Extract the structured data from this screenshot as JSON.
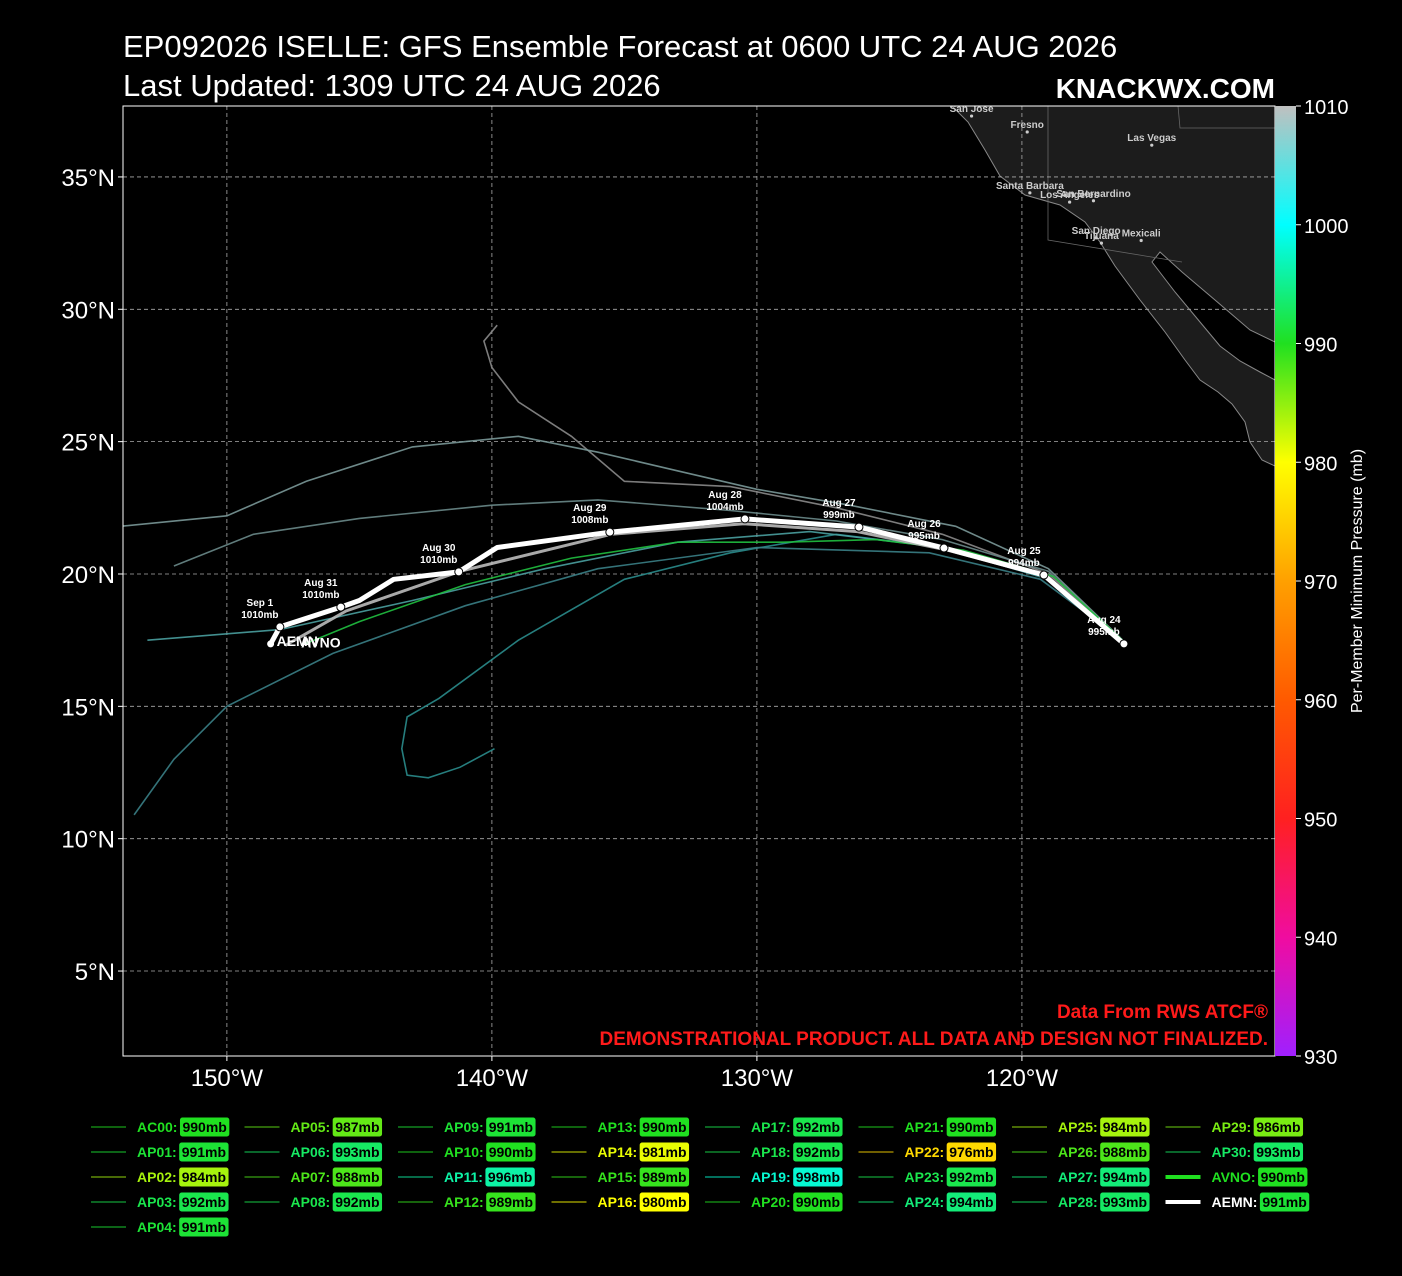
{
  "header": {
    "title": "EP092026 ISELLE: GFS Ensemble Forecast at 0600 UTC 24 AUG 2026",
    "subtitle": "Last Updated: 1309 UTC 24 AUG 2026",
    "watermark": "KNACKWX.COM"
  },
  "chart_data": {
    "type": "track-map",
    "xlim": [
      -153.92,
      -110.45
    ],
    "ylim": [
      1.79,
      37.68
    ],
    "xticks": [
      {
        "value": -150,
        "label": "150°W"
      },
      {
        "value": -140,
        "label": "140°W"
      },
      {
        "value": -130,
        "label": "130°W"
      },
      {
        "value": -120,
        "label": "120°W"
      }
    ],
    "yticks": [
      {
        "value": 5,
        "label": "5°N"
      },
      {
        "value": 10,
        "label": "10°N"
      },
      {
        "value": 15,
        "label": "15°N"
      },
      {
        "value": 20,
        "label": "20°N"
      },
      {
        "value": 25,
        "label": "25°N"
      },
      {
        "value": 30,
        "label": "30°N"
      },
      {
        "value": 35,
        "label": "35°N"
      }
    ],
    "grid": true,
    "land_color": "#1c1c1c",
    "cities": [
      {
        "name": "San Jose",
        "lon": -121.9,
        "lat": 37.3
      },
      {
        "name": "Fresno",
        "lon": -119.8,
        "lat": 36.7
      },
      {
        "name": "Las Vegas",
        "lon": -115.1,
        "lat": 36.2
      },
      {
        "name": "Santa Barbara",
        "lon": -119.7,
        "lat": 34.4
      },
      {
        "name": "Los Angeles",
        "lon": -118.2,
        "lat": 34.05
      },
      {
        "name": "San Bernardino",
        "lon": -117.3,
        "lat": 34.1
      },
      {
        "name": "San Diego",
        "lon": -117.2,
        "lat": 32.7
      },
      {
        "name": "Tijuana",
        "lon": -117.0,
        "lat": 32.5
      },
      {
        "name": "Mexicali",
        "lon": -115.5,
        "lat": 32.6
      }
    ],
    "members": [
      {
        "color": "#2a8c8c",
        "lon": [
          -116.2,
          -119,
          -123,
          -127,
          -131,
          -135,
          -139,
          -142,
          -143.2,
          -143.4,
          -143.2,
          -142.4,
          -141.2,
          -139.9
        ],
        "lat": [
          17.5,
          19.8,
          21,
          21.5,
          20.8,
          19.8,
          17.5,
          15.3,
          14.6,
          13.4,
          12.4,
          12.3,
          12.7,
          13.4
        ]
      },
      {
        "color": "#8a8a8a",
        "lon": [
          -116.2,
          -119,
          -123,
          -127,
          -131,
          -135,
          -137,
          -139,
          -140,
          -140.3,
          -139.8
        ],
        "lat": [
          17.5,
          20,
          21.5,
          22.5,
          23.3,
          23.5,
          25.2,
          26.5,
          27.8,
          28.8,
          29.4
        ]
      },
      {
        "color": "#6a8a8a",
        "lon": [
          -116.2,
          -119,
          -123,
          -127,
          -131,
          -136,
          -140,
          -145,
          -149,
          -152
        ],
        "lat": [
          17.5,
          20.1,
          21.3,
          22,
          22.4,
          22.8,
          22.6,
          22.1,
          21.5,
          20.3
        ]
      },
      {
        "color": "#4aa0a0",
        "lon": [
          -116.2,
          -119.2,
          -123,
          -128,
          -133,
          -138,
          -143,
          -148,
          -153
        ],
        "lat": [
          17.5,
          19.9,
          21,
          21.6,
          21.2,
          20.2,
          19,
          17.9,
          17.5
        ]
      },
      {
        "color": "#3a7f86",
        "lon": [
          -116.2,
          -119.3,
          -123.5,
          -130,
          -136,
          -141,
          -146,
          -150,
          -152,
          -153.5
        ],
        "lat": [
          17.5,
          19.8,
          20.8,
          21,
          20.2,
          18.8,
          17,
          15,
          13,
          10.9
        ]
      },
      {
        "color": "#7a9898",
        "lon": [
          -116.3,
          -119,
          -122.5,
          -126.5,
          -130,
          -133,
          -136,
          -139,
          -143,
          -147,
          -150,
          -154
        ],
        "lat": [
          17.6,
          20.2,
          21.8,
          22.6,
          23.2,
          23.9,
          24.6,
          25.2,
          24.8,
          23.5,
          22.2,
          21.8
        ]
      },
      {
        "color": "#20c040",
        "lon": [
          -116.1,
          -118.8,
          -122.2,
          -125.5,
          -129,
          -133,
          -137,
          -141,
          -145,
          -147.2
        ],
        "lat": [
          17.4,
          19.9,
          20.9,
          21.3,
          21.2,
          21.2,
          20.6,
          19.6,
          18.2,
          17.3
        ]
      },
      {
        "name": "AVNO",
        "color": "#bbbbbb",
        "lon": [
          -116.2,
          -119.1,
          -122.8,
          -126.2,
          -130.5,
          -135.5,
          -141.2,
          -145.5,
          -147.8
        ],
        "lat": [
          17.4,
          19.9,
          20.9,
          21.6,
          21.9,
          21.5,
          20.1,
          18.6,
          17.3
        ]
      }
    ],
    "mean_track": {
      "name": "AEMN",
      "color": "#ffffff",
      "lon": [
        -116.15,
        -119.17,
        -122.94,
        -126.15,
        -130.45,
        -135.55,
        -139.8,
        -141.25,
        -143.7,
        -145.0,
        -145.7,
        -148.0,
        -148.35
      ],
      "lat": [
        17.36,
        19.96,
        20.98,
        21.77,
        22.08,
        21.58,
        21.0,
        20.08,
        19.8,
        19.0,
        18.75,
        18.0,
        17.36
      ],
      "points": [
        {
          "date": "Aug 24",
          "pressure": {
            "value": 995,
            "label": "995mb"
          },
          "lon": -116.15,
          "lat": 17.36
        },
        {
          "date": "Aug 25",
          "pressure": {
            "value": 994,
            "label": "994mb"
          },
          "lon": -119.17,
          "lat": 19.96
        },
        {
          "date": "Aug 26",
          "pressure": {
            "value": 995,
            "label": "995mb"
          },
          "lon": -122.94,
          "lat": 20.98
        },
        {
          "date": "Aug 27",
          "pressure": {
            "value": 999,
            "label": "999mb"
          },
          "lon": -126.15,
          "lat": 21.77
        },
        {
          "date": "Aug 28",
          "pressure": {
            "value": 1004,
            "label": "1004mb"
          },
          "lon": -130.45,
          "lat": 22.08
        },
        {
          "date": "Aug 29",
          "pressure": {
            "value": 1008,
            "label": "1008mb"
          },
          "lon": -135.55,
          "lat": 21.58
        },
        {
          "date": "Aug 30",
          "pressure": {
            "value": 1010,
            "label": "1010mb"
          },
          "lon": -141.25,
          "lat": 20.08
        },
        {
          "date": "Aug 31",
          "pressure": {
            "value": 1010,
            "label": "1010mb"
          },
          "lon": -145.7,
          "lat": 18.75
        },
        {
          "date": "Sep 1",
          "pressure": {
            "value": 1010,
            "label": "1010mb"
          },
          "lon": -148.0,
          "lat": 18.0
        }
      ]
    },
    "colorbar": {
      "label": "Per-Member Minimum Pressure (mb)",
      "lim": [
        930,
        1010
      ],
      "ticks": [
        930,
        940,
        950,
        960,
        970,
        980,
        990,
        1000,
        1010
      ],
      "stops": [
        {
          "value": 930,
          "color": "#a020ff"
        },
        {
          "value": 940,
          "color": "#f00ca0"
        },
        {
          "value": 950,
          "color": "#ff2020"
        },
        {
          "value": 960,
          "color": "#ff5a00"
        },
        {
          "value": 970,
          "color": "#ffa000"
        },
        {
          "value": 980,
          "color": "#ffff00"
        },
        {
          "value": 990,
          "color": "#20e020"
        },
        {
          "value": 1000,
          "color": "#00ffff"
        },
        {
          "value": 1010,
          "color": "#c0c0c0"
        }
      ]
    },
    "legend": [
      {
        "name": "AC00:",
        "pressure": {
          "value": 990,
          "label": "990mb"
        }
      },
      {
        "name": "AP01:",
        "pressure": {
          "value": 991,
          "label": "991mb"
        }
      },
      {
        "name": "AP02:",
        "pressure": {
          "value": 984,
          "label": "984mb"
        }
      },
      {
        "name": "AP03:",
        "pressure": {
          "value": 992,
          "label": "992mb"
        }
      },
      {
        "name": "AP04:",
        "pressure": {
          "value": 991,
          "label": "991mb"
        }
      },
      {
        "name": "AP05:",
        "pressure": {
          "value": 987,
          "label": "987mb"
        }
      },
      {
        "name": "AP06:",
        "pressure": {
          "value": 993,
          "label": "993mb"
        }
      },
      {
        "name": "AP07:",
        "pressure": {
          "value": 988,
          "label": "988mb"
        }
      },
      {
        "name": "AP08:",
        "pressure": {
          "value": 992,
          "label": "992mb"
        }
      },
      {
        "name": "AP09:",
        "pressure": {
          "value": 991,
          "label": "991mb"
        }
      },
      {
        "name": "AP10:",
        "pressure": {
          "value": 990,
          "label": "990mb"
        }
      },
      {
        "name": "AP11:",
        "pressure": {
          "value": 996,
          "label": "996mb"
        }
      },
      {
        "name": "AP12:",
        "pressure": {
          "value": 989,
          "label": "989mb"
        }
      },
      {
        "name": "AP13:",
        "pressure": {
          "value": 990,
          "label": "990mb"
        }
      },
      {
        "name": "AP14:",
        "pressure": {
          "value": 981,
          "label": "981mb"
        }
      },
      {
        "name": "AP15:",
        "pressure": {
          "value": 989,
          "label": "989mb"
        }
      },
      {
        "name": "AP16:",
        "pressure": {
          "value": 980,
          "label": "980mb"
        }
      },
      {
        "name": "AP17:",
        "pressure": {
          "value": 992,
          "label": "992mb"
        }
      },
      {
        "name": "AP18:",
        "pressure": {
          "value": 992,
          "label": "992mb"
        }
      },
      {
        "name": "AP19:",
        "pressure": {
          "value": 998,
          "label": "998mb"
        }
      },
      {
        "name": "AP20:",
        "pressure": {
          "value": 990,
          "label": "990mb"
        }
      },
      {
        "name": "AP21:",
        "pressure": {
          "value": 990,
          "label": "990mb"
        }
      },
      {
        "name": "AP22:",
        "pressure": {
          "value": 976,
          "label": "976mb"
        }
      },
      {
        "name": "AP23:",
        "pressure": {
          "value": 992,
          "label": "992mb"
        }
      },
      {
        "name": "AP24:",
        "pressure": {
          "value": 994,
          "label": "994mb"
        }
      },
      {
        "name": "AP25:",
        "pressure": {
          "value": 984,
          "label": "984mb"
        }
      },
      {
        "name": "AP26:",
        "pressure": {
          "value": 988,
          "label": "988mb"
        }
      },
      {
        "name": "AP27:",
        "pressure": {
          "value": 994,
          "label": "994mb"
        }
      },
      {
        "name": "AP28:",
        "pressure": {
          "value": 993,
          "label": "993mb"
        }
      },
      {
        "name": "AP29:",
        "pressure": {
          "value": 986,
          "label": "986mb"
        }
      },
      {
        "name": "AP30:",
        "pressure": {
          "value": 993,
          "label": "993mb"
        }
      },
      {
        "name": "AVNO:",
        "pressure": {
          "value": 990,
          "label": "990mb"
        }
      },
      {
        "name": "AEMN:",
        "pressure": {
          "value": 991,
          "label": "991mb"
        },
        "color": "#ffffff"
      }
    ],
    "annotations": {
      "source": "Data From RWS ATCF®",
      "disclaimer": "DEMONSTRATIONAL PRODUCT. ALL DATA AND DESIGN NOT FINALIZED."
    }
  }
}
